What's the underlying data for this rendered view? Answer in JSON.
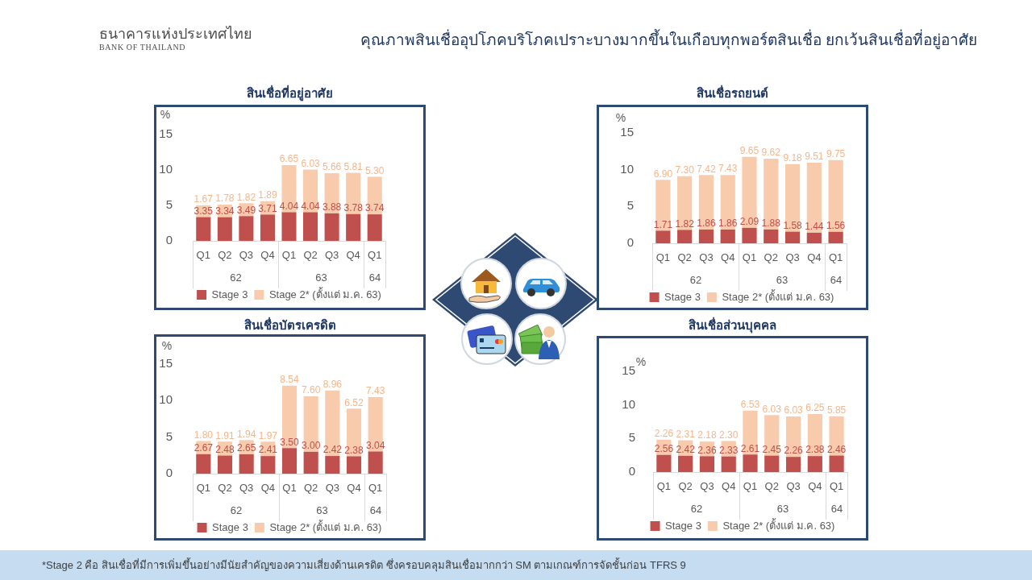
{
  "chart_data": [
    {
      "type": "other",
      "title": "คุณภาพสินเชื่ออุปโภคบริโภคเปราะบางมากขึ้นในเกือบทุกพอร์ตสินเชื่อ ยกเว้นสินเชื่อที่อยู่อาศัย",
      "annotations": [
        "ธนาคารแห่งประเทศไทย",
        "BANK OF THAILAND",
        "*Stage 2 คือ สินเชื่อที่มีการเพิ่มขึ้นอย่างมีนัยสำคัญของความเสี่ยงด้านเครดิต ซึ่งครอบคลุมสินเชื่อมากกว่า SM ตามเกณฑ์การจัดชั้นก่อน TFRS 9"
      ]
    },
    {
      "type": "bar",
      "stacked": true,
      "title": "สินเชื่อที่อยู่อาศัย",
      "ylabel": "%",
      "categories": [
        "Q1",
        "Q2",
        "Q3",
        "Q4",
        "Q1",
        "Q2",
        "Q3",
        "Q4",
        "Q1"
      ],
      "annotations": [
        "62",
        "63",
        "64"
      ],
      "ylim": [
        0,
        15
      ],
      "yticks": [
        0,
        5,
        10,
        15
      ],
      "legend": "bottom",
      "series": [
        {
          "name": "Stage 3",
          "color": "#c0504d",
          "values": [
            3.35,
            3.34,
            3.49,
            3.71,
            4.04,
            4.04,
            3.88,
            3.78,
            3.74
          ],
          "value_labels": [
            "3.35",
            "3.34",
            "3.49",
            "3.71",
            "4.04",
            "4.04",
            "3.88",
            "3.78",
            "3.74"
          ]
        },
        {
          "name": "Stage 2* (ตั้งแต่ ม.ค. 63)",
          "color": "#f8cbad",
          "values": [
            1.67,
            1.78,
            1.82,
            1.89,
            6.65,
            6.03,
            5.66,
            5.81,
            5.3
          ],
          "value_labels": [
            "1.67",
            "1.78",
            "1.82",
            "1.89",
            "6.65",
            "6.03",
            "5.66",
            "5.81",
            "5.30"
          ]
        }
      ]
    },
    {
      "type": "bar",
      "stacked": true,
      "title": "สินเชื่อรถยนต์",
      "ylabel": "%",
      "categories": [
        "Q1",
        "Q2",
        "Q3",
        "Q4",
        "Q1",
        "Q2",
        "Q3",
        "Q4",
        "Q1"
      ],
      "annotations": [
        "62",
        "63",
        "64"
      ],
      "ylim": [
        0,
        15
      ],
      "yticks": [
        0,
        5,
        10,
        15
      ],
      "legend": "bottom",
      "series": [
        {
          "name": "Stage 3",
          "color": "#c0504d",
          "values": [
            1.71,
            1.82,
            1.86,
            1.86,
            2.09,
            1.88,
            1.58,
            1.44,
            1.56
          ],
          "value_labels": [
            "1.71",
            "1.82",
            "1.86",
            "1.86",
            "2.09",
            "1.88",
            "1.58",
            "1.44",
            "1.56"
          ]
        },
        {
          "name": "Stage 2* (ตั้งแต่ ม.ค. 63)",
          "color": "#f8cbad",
          "values": [
            6.9,
            7.3,
            7.42,
            7.43,
            9.65,
            9.62,
            9.18,
            9.51,
            9.75
          ],
          "value_labels": [
            "6.90",
            "7.30",
            "7.42",
            "7.43",
            "9.65",
            "9.62",
            "9.18",
            "9.51",
            "9.75"
          ]
        }
      ]
    },
    {
      "type": "bar",
      "stacked": true,
      "title": "สินเชื่อบัตรเครดิต",
      "ylabel": "%",
      "categories": [
        "Q1",
        "Q2",
        "Q3",
        "Q4",
        "Q1",
        "Q2",
        "Q3",
        "Q4",
        "Q1"
      ],
      "annotations": [
        "62",
        "63",
        "64"
      ],
      "ylim": [
        0,
        15
      ],
      "yticks": [
        0,
        5,
        10,
        15
      ],
      "legend": "bottom",
      "series": [
        {
          "name": "Stage 3",
          "color": "#c0504d",
          "values": [
            2.67,
            2.48,
            2.65,
            2.41,
            3.5,
            3.0,
            2.42,
            2.38,
            3.04
          ],
          "value_labels": [
            "2.67",
            "2.48",
            "2.65",
            "2.41",
            "3.50",
            "3.00",
            "2.42",
            "2.38",
            "3.04"
          ]
        },
        {
          "name": "Stage 2* (ตั้งแต่ ม.ค. 63)",
          "color": "#f8cbad",
          "values": [
            1.8,
            1.91,
            1.94,
            1.97,
            8.54,
            7.6,
            8.96,
            6.52,
            7.43
          ],
          "value_labels": [
            "1.80",
            "1.91",
            "1.94",
            "1.97",
            "8.54",
            "7.60",
            "8.96",
            "6.52",
            "7.43"
          ]
        }
      ]
    },
    {
      "type": "bar",
      "stacked": true,
      "title": "สินเชื่อส่วนบุคคล",
      "ylabel": "%",
      "categories": [
        "Q1",
        "Q2",
        "Q3",
        "Q4",
        "Q1",
        "Q2",
        "Q3",
        "Q4",
        "Q1"
      ],
      "annotations": [
        "62",
        "63",
        "64"
      ],
      "ylim": [
        0,
        15
      ],
      "yticks": [
        0,
        5,
        10,
        15
      ],
      "legend": "bottom",
      "series": [
        {
          "name": "Stage 3",
          "color": "#c0504d",
          "values": [
            2.56,
            2.42,
            2.36,
            2.33,
            2.61,
            2.45,
            2.26,
            2.38,
            2.46
          ],
          "value_labels": [
            "2.56",
            "2.42",
            "2.36",
            "2.33",
            "2.61",
            "2.45",
            "2.26",
            "2.38",
            "2.46"
          ]
        },
        {
          "name": "Stage 2* (ตั้งแต่ ม.ค. 63)",
          "color": "#f8cbad",
          "values": [
            2.26,
            2.31,
            2.18,
            2.3,
            6.53,
            6.03,
            6.03,
            6.25,
            5.85
          ],
          "value_labels": [
            "2.26",
            "2.31",
            "2.18",
            "2.30",
            "6.53",
            "6.03",
            "6.03",
            "6.25",
            "5.85"
          ]
        }
      ]
    }
  ]
}
